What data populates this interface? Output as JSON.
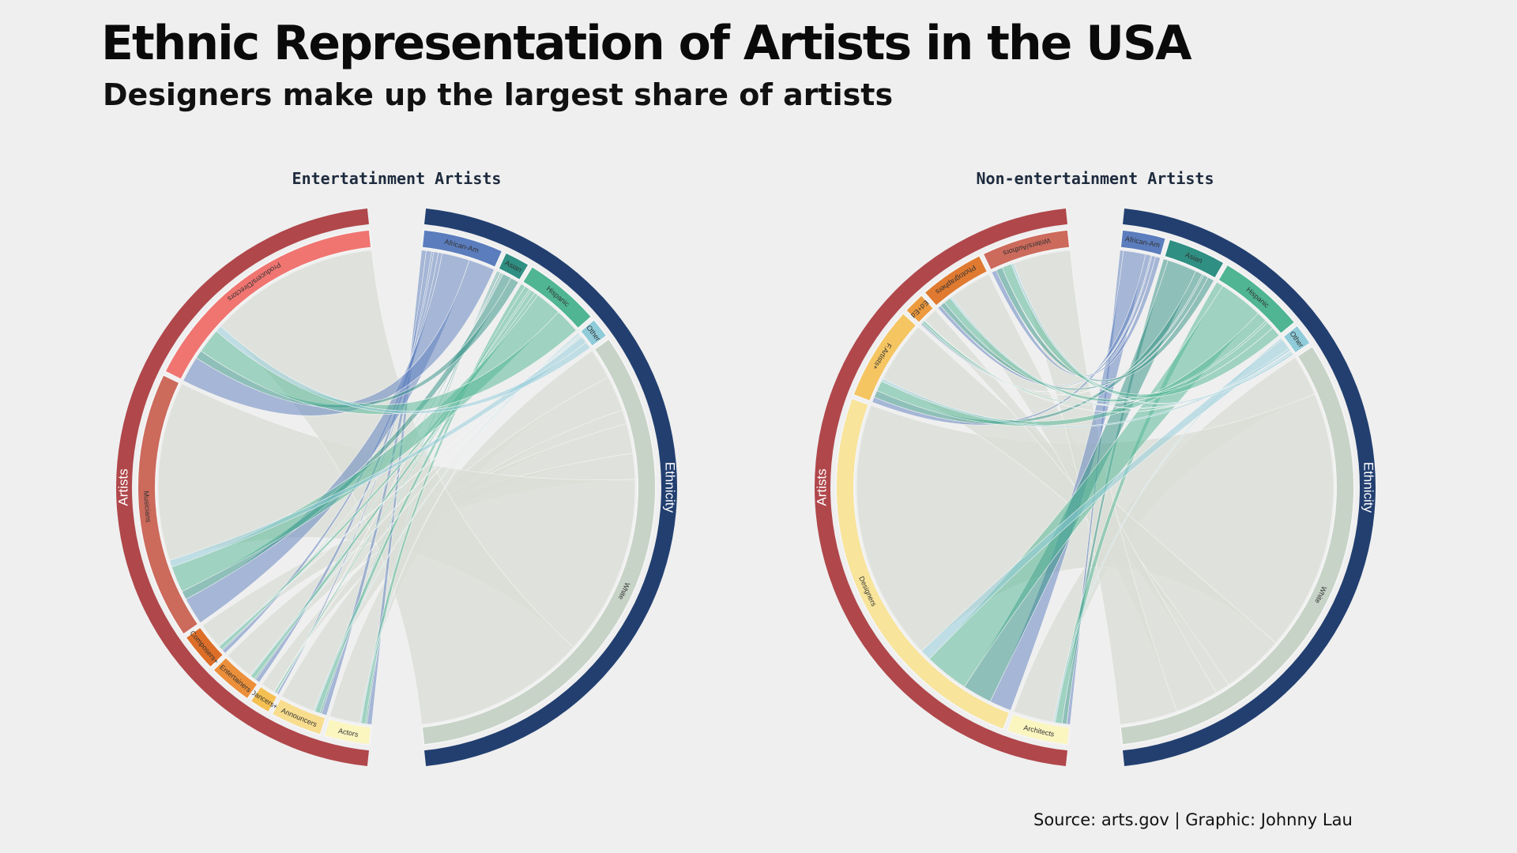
{
  "title": "Ethnic Representation of Artists in the USA",
  "subtitle": "Designers make up the largest share of artists",
  "source": "Source: arts.gov | Graphic: Johnny Lau",
  "colors": {
    "artists_group": "#b0474b",
    "ethnicity_group": "#223f70",
    "white_chord": "#d9ddd5"
  },
  "chart_data": [
    {
      "type": "chord",
      "title": "Entertatinment Artists",
      "group_labels": {
        "left": "Artists",
        "right": "Ethnicity"
      },
      "artists": [
        {
          "name": "Actors",
          "color": "#fbf5c0",
          "share": 0.063
        },
        {
          "name": "Announcers",
          "color": "#f8dd8e",
          "share": 0.072
        },
        {
          "name": "Dancers+",
          "color": "#f5c052",
          "share": 0.029
        },
        {
          "name": "Entertainers",
          "color": "#ec8f3a",
          "share": 0.061
        },
        {
          "name": "Composers+",
          "color": "#dd6e28",
          "share": 0.053
        },
        {
          "name": "Musicians",
          "color": "#cc6a5c",
          "share": 0.37
        },
        {
          "name": "Producers/Directors",
          "color": "#f07571",
          "share": 0.352
        }
      ],
      "ethnicities": [
        {
          "name": "African-Am",
          "color": "#5b7dbd",
          "share": 0.11
        },
        {
          "name": "Asian",
          "color": "#2f8f83",
          "share": 0.035
        },
        {
          "name": "Hispanic",
          "color": "#4fb593",
          "share": 0.105
        },
        {
          "name": "Other",
          "color": "#8fcbd9",
          "share": 0.028
        },
        {
          "name": "White",
          "color": "#c7d3c7",
          "share": 0.722
        }
      ]
    },
    {
      "type": "chord",
      "title": "Non-entertainment Artists",
      "group_labels": {
        "left": "Artists",
        "right": "Ethnicity"
      },
      "artists": [
        {
          "name": "Architects",
          "color": "#fbf5c0",
          "share": 0.085
        },
        {
          "name": "Designers",
          "color": "#f8e49a",
          "share": 0.545
        },
        {
          "name": "F.Artists+",
          "color": "#f5c562",
          "share": 0.13
        },
        {
          "name": "Ed+Ed",
          "color": "#ec9a3e",
          "share": 0.03
        },
        {
          "name": "Photographers",
          "color": "#df7a30",
          "share": 0.09
        },
        {
          "name": "Writers/Authors",
          "color": "#cc6a5c",
          "share": 0.12
        }
      ],
      "ethnicities": [
        {
          "name": "African-Am",
          "color": "#5b7dbd",
          "share": 0.06
        },
        {
          "name": "Asian",
          "color": "#2f8f83",
          "share": 0.08
        },
        {
          "name": "Hispanic",
          "color": "#4fb593",
          "share": 0.12
        },
        {
          "name": "Other",
          "color": "#8fcbd9",
          "share": 0.03
        },
        {
          "name": "White",
          "color": "#c7d3c7",
          "share": 0.71
        }
      ]
    }
  ]
}
